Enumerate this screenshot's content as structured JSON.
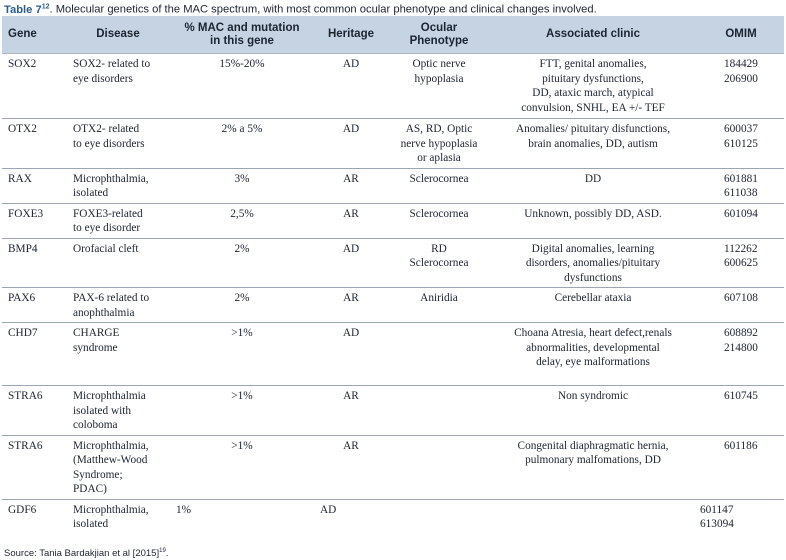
{
  "caption": {
    "label": "Table 7",
    "ref": "12",
    "text": ". Molecular genetics of the MAC spectrum, with most common ocular phenotype and clinical changes involved."
  },
  "table": {
    "headers": [
      "Gene",
      "Disease",
      "% MAC and mutation\nin this gene",
      "Heritage",
      "Ocular\nPhenotype",
      "Associated clinic",
      "OMIM"
    ],
    "rows": [
      [
        "SOX2",
        "SOX2- related to\neye disorders",
        "15%-20%",
        "AD",
        "Optic nerve\nhypoplasia",
        "FTT, genital anomalies,\npituitary dysfunctions,\nDD, ataxic march, atypical\nconvulsion, SNHL, EA +/- TEF",
        "184429\n206900"
      ],
      [
        "OTX2",
        "OTX2- related\nto eye disorders",
        "2% a 5%",
        "AD",
        "AS, RD, Optic\nnerve hypoplasia\nor aplasia",
        "Anomalies/ pituitary disfunctions,\nbrain anomalies, DD, autism",
        "600037\n610125"
      ],
      [
        "RAX",
        "Microphthalmia,\nisolated",
        "3%",
        "AR",
        "Sclerocornea",
        "DD",
        "601881\n611038"
      ],
      [
        "FOXE3",
        "FOXE3-related\nto eye disorder",
        "2,5%",
        "AR",
        "Sclerocornea",
        "Unknown, possibly DD, ASD.",
        "601094"
      ],
      [
        "BMP4",
        "Orofacial cleft",
        "2%",
        "AD",
        "RD\nSclerocornea",
        "Digital anomalies, learning\ndisorders, anomalies/pituitary\ndysfunctions",
        "112262\n600625"
      ],
      [
        "PAX6",
        "PAX-6 related to\nanophthalmia",
        "2%",
        "AR",
        "Aniridia",
        "Cerebellar ataxia",
        "607108"
      ],
      [
        "CHD7",
        "CHARGE\nsyndrome",
        ">1%",
        "AD",
        "",
        "Choana Atresia, heart defect,renals\nabnormalities,  developmental\ndelay, eye malformations",
        "608892\n214800"
      ],
      [
        "STRA6",
        "Microphthalmia\nisolated  with\ncoloboma",
        ">1%",
        "AR",
        "",
        "Non syndromic",
        "610745"
      ],
      [
        "STRA6",
        "Microphthalmia,\n(Matthew-Wood\nSyndrome;\nPDAC)",
        ">1%",
        "AR",
        "",
        "Congenital diaphragmatic hernia,\npulmonary malfomations, DD",
        "601186"
      ],
      [
        "GDF6",
        "Microphthalmia,\nisolated",
        "1%",
        "AD",
        "",
        "",
        "601147\n613094"
      ]
    ]
  },
  "source": {
    "text": "Source: Tania Bardakjian et al [2015]",
    "ref": "19"
  }
}
